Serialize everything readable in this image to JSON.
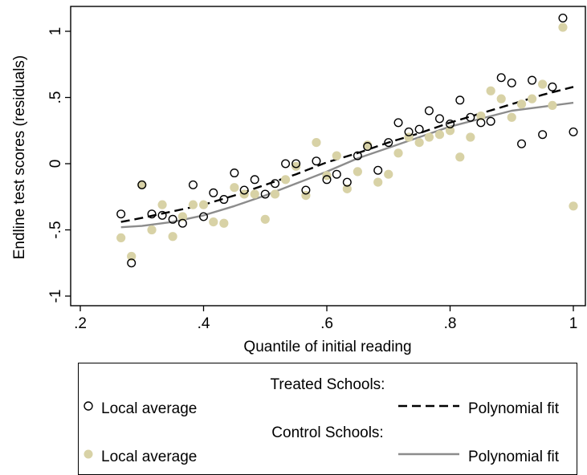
{
  "chart_data": {
    "type": "scatter",
    "xlabel": "Quantile of initial reading",
    "ylabel": "Endline test scores (residuals)",
    "xlim": [
      0.2,
      1.0
    ],
    "ylim": [
      -1.0,
      1.2
    ],
    "x_ticks": [
      0.2,
      0.4,
      0.6,
      0.8,
      1.0
    ],
    "x_tick_labels": [
      ".2",
      ".4",
      ".6",
      ".8",
      "1"
    ],
    "y_ticks": [
      -1.0,
      -0.5,
      0.0,
      0.5,
      1.0
    ],
    "y_tick_labels": [
      "-1",
      "-.5",
      "0",
      ".5",
      "1"
    ],
    "grid": false,
    "legend": {
      "position": "bottom",
      "groups": [
        {
          "heading": "Treated Schools:",
          "marker_label": "Local average",
          "line_label": "Polynomial fit"
        },
        {
          "heading": "Control Schools:",
          "marker_label": "Local average",
          "line_label": "Polynomial fit"
        }
      ]
    },
    "series": [
      {
        "group": "Treated Schools",
        "kind": "local average",
        "marker": "hollow-circle",
        "color": "#000000",
        "points": [
          [
            0.266,
            -0.38
          ],
          [
            0.283,
            -0.75
          ],
          [
            0.3,
            -0.16
          ],
          [
            0.316,
            -0.38
          ],
          [
            0.333,
            -0.39
          ],
          [
            0.35,
            -0.42
          ],
          [
            0.366,
            -0.45
          ],
          [
            0.383,
            -0.16
          ],
          [
            0.4,
            -0.4
          ],
          [
            0.416,
            -0.22
          ],
          [
            0.433,
            -0.27
          ],
          [
            0.45,
            -0.07
          ],
          [
            0.466,
            -0.2
          ],
          [
            0.483,
            -0.12
          ],
          [
            0.5,
            -0.23
          ],
          [
            0.516,
            -0.15
          ],
          [
            0.533,
            0.0
          ],
          [
            0.55,
            0.0
          ],
          [
            0.566,
            -0.2
          ],
          [
            0.583,
            0.02
          ],
          [
            0.6,
            -0.12
          ],
          [
            0.616,
            -0.08
          ],
          [
            0.633,
            -0.14
          ],
          [
            0.65,
            0.06
          ],
          [
            0.666,
            0.13
          ],
          [
            0.683,
            -0.05
          ],
          [
            0.7,
            0.16
          ],
          [
            0.716,
            0.31
          ],
          [
            0.733,
            0.24
          ],
          [
            0.75,
            0.26
          ],
          [
            0.766,
            0.4
          ],
          [
            0.783,
            0.34
          ],
          [
            0.8,
            0.3
          ],
          [
            0.816,
            0.48
          ],
          [
            0.833,
            0.35
          ],
          [
            0.85,
            0.31
          ],
          [
            0.866,
            0.32
          ],
          [
            0.883,
            0.65
          ],
          [
            0.9,
            0.61
          ],
          [
            0.916,
            0.15
          ],
          [
            0.933,
            0.63
          ],
          [
            0.95,
            0.22
          ],
          [
            0.966,
            0.58
          ],
          [
            0.983,
            1.1
          ],
          [
            1.0,
            0.24
          ]
        ]
      },
      {
        "group": "Control Schools",
        "kind": "local average",
        "marker": "filled-circle",
        "color": "#d8d2a6",
        "points": [
          [
            0.266,
            -0.56
          ],
          [
            0.283,
            -0.7
          ],
          [
            0.3,
            -0.16
          ],
          [
            0.316,
            -0.5
          ],
          [
            0.333,
            -0.31
          ],
          [
            0.35,
            -0.55
          ],
          [
            0.366,
            -0.4
          ],
          [
            0.383,
            -0.31
          ],
          [
            0.4,
            -0.31
          ],
          [
            0.416,
            -0.44
          ],
          [
            0.433,
            -0.45
          ],
          [
            0.45,
            -0.18
          ],
          [
            0.466,
            -0.23
          ],
          [
            0.483,
            -0.23
          ],
          [
            0.5,
            -0.42
          ],
          [
            0.516,
            -0.23
          ],
          [
            0.533,
            -0.12
          ],
          [
            0.55,
            -0.02
          ],
          [
            0.566,
            -0.24
          ],
          [
            0.583,
            0.16
          ],
          [
            0.6,
            -0.09
          ],
          [
            0.616,
            0.06
          ],
          [
            0.633,
            -0.19
          ],
          [
            0.65,
            -0.06
          ],
          [
            0.666,
            0.14
          ],
          [
            0.683,
            -0.14
          ],
          [
            0.7,
            -0.08
          ],
          [
            0.716,
            0.08
          ],
          [
            0.733,
            0.2
          ],
          [
            0.75,
            0.16
          ],
          [
            0.766,
            0.2
          ],
          [
            0.783,
            0.22
          ],
          [
            0.8,
            0.25
          ],
          [
            0.816,
            0.05
          ],
          [
            0.833,
            0.2
          ],
          [
            0.85,
            0.36
          ],
          [
            0.866,
            0.55
          ],
          [
            0.883,
            0.49
          ],
          [
            0.9,
            0.35
          ],
          [
            0.916,
            0.45
          ],
          [
            0.933,
            0.49
          ],
          [
            0.95,
            0.6
          ],
          [
            0.966,
            0.44
          ],
          [
            0.983,
            1.03
          ],
          [
            1.0,
            -0.32
          ]
        ]
      },
      {
        "group": "Treated Schools",
        "kind": "polynomial fit",
        "line": "dashed",
        "color": "#000000",
        "points": [
          [
            0.266,
            -0.44
          ],
          [
            0.3,
            -0.41
          ],
          [
            0.35,
            -0.36
          ],
          [
            0.4,
            -0.31
          ],
          [
            0.45,
            -0.24
          ],
          [
            0.5,
            -0.16
          ],
          [
            0.55,
            -0.08
          ],
          [
            0.6,
            0.01
          ],
          [
            0.65,
            0.08
          ],
          [
            0.7,
            0.16
          ],
          [
            0.75,
            0.23
          ],
          [
            0.8,
            0.31
          ],
          [
            0.85,
            0.38
          ],
          [
            0.9,
            0.45
          ],
          [
            0.95,
            0.52
          ],
          [
            1.0,
            0.58
          ]
        ]
      },
      {
        "group": "Control Schools",
        "kind": "polynomial fit",
        "line": "solid",
        "color": "#8c8c8c",
        "points": [
          [
            0.266,
            -0.48
          ],
          [
            0.3,
            -0.47
          ],
          [
            0.35,
            -0.44
          ],
          [
            0.4,
            -0.39
          ],
          [
            0.45,
            -0.32
          ],
          [
            0.5,
            -0.24
          ],
          [
            0.55,
            -0.15
          ],
          [
            0.6,
            -0.06
          ],
          [
            0.65,
            0.04
          ],
          [
            0.7,
            0.12
          ],
          [
            0.75,
            0.2
          ],
          [
            0.8,
            0.28
          ],
          [
            0.85,
            0.34
          ],
          [
            0.9,
            0.4
          ],
          [
            0.95,
            0.43
          ],
          [
            1.0,
            0.46
          ]
        ]
      }
    ]
  }
}
